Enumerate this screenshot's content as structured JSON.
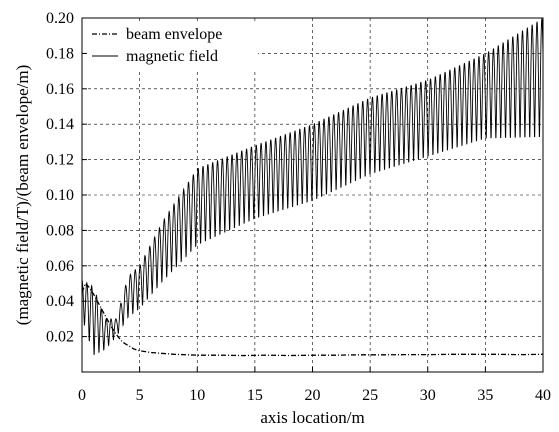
{
  "chart_data": {
    "type": "line",
    "xlabel": "axis location/m",
    "ylabel": "(magnetic field/T)/(beam envelope/m)",
    "xlim": [
      0,
      40
    ],
    "ylim": [
      0.0,
      0.2
    ],
    "xticks": [
      "0",
      "5",
      "10",
      "15",
      "20",
      "25",
      "30",
      "35",
      "40"
    ],
    "yticks": [
      "0.02",
      "0.04",
      "0.06",
      "0.08",
      "0.10",
      "0.12",
      "0.14",
      "0.16",
      "0.18",
      "0.20"
    ],
    "grid": true,
    "legend_position": "top-left",
    "series": [
      {
        "name": "beam envelope",
        "style": "dash-dot",
        "color": "#000000",
        "x": [
          0,
          0.3,
          0.6,
          1.0,
          1.5,
          2.0,
          2.5,
          3.0,
          3.5,
          4.0,
          4.5,
          5.0,
          6.0,
          7.0,
          8.0,
          10,
          12,
          14,
          16,
          18,
          20,
          22,
          24,
          26,
          28,
          30,
          32,
          34,
          36,
          38,
          40
        ],
        "y": [
          0.045,
          0.05,
          0.048,
          0.044,
          0.038,
          0.032,
          0.026,
          0.021,
          0.017,
          0.015,
          0.013,
          0.012,
          0.011,
          0.0105,
          0.01,
          0.0095,
          0.0095,
          0.0093,
          0.0095,
          0.0093,
          0.0095,
          0.0095,
          0.0097,
          0.0097,
          0.0098,
          0.0098,
          0.01,
          0.01,
          0.01,
          0.0098,
          0.01
        ]
      },
      {
        "name": "magnetic field",
        "style": "solid",
        "color": "#000000",
        "description_envelope": {
          "x": [
            0,
            1,
            2,
            3,
            4,
            5,
            7,
            10,
            15,
            20,
            25,
            30,
            35,
            40
          ],
          "y_max": [
            0.052,
            0.048,
            0.03,
            0.03,
            0.054,
            0.06,
            0.085,
            0.115,
            0.128,
            0.14,
            0.155,
            0.165,
            0.18,
            0.2
          ],
          "y_min": [
            0.03,
            0.008,
            0.012,
            0.02,
            0.03,
            0.035,
            0.05,
            0.07,
            0.085,
            0.095,
            0.11,
            0.12,
            0.13,
            0.13
          ]
        },
        "period_m": 0.42
      }
    ]
  }
}
